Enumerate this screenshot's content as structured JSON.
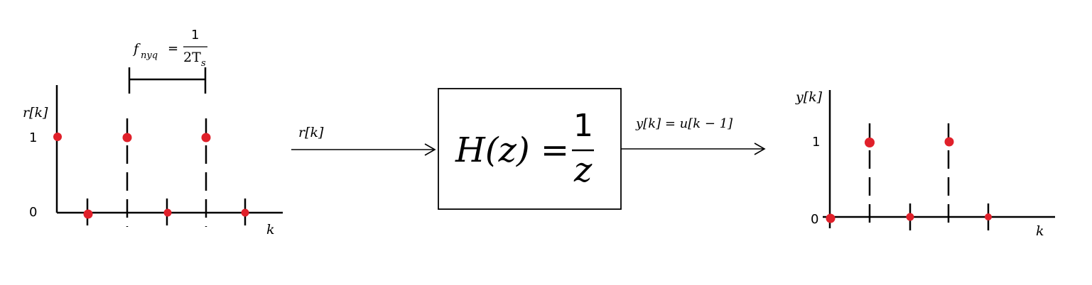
{
  "left_plot": {
    "ylabel": "r[k]",
    "xlabel": "k",
    "ytick_one": "1",
    "ytick_zero": "0",
    "nyquist_label": "f",
    "nyquist_sub": "nyq",
    "nyquist_eq": "=",
    "nyquist_num": "1",
    "nyquist_den": "2T",
    "nyquist_den_sub": "s",
    "samples": [
      1,
      0,
      1,
      0,
      1,
      0
    ]
  },
  "input_label": "r[k]",
  "system": {
    "lhs": "H(z) =",
    "numerator": "1",
    "denominator": "z"
  },
  "output_label": "y[k] = u[k − 1]",
  "right_plot": {
    "ylabel": "y[k]",
    "xlabel": "k",
    "ytick_one": "1",
    "ytick_zero": "0",
    "samples": [
      0,
      1,
      0,
      1,
      0
    ]
  }
}
